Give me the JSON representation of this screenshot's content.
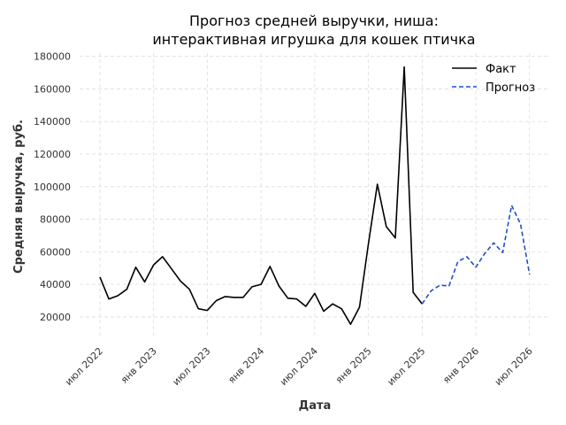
{
  "chart_data": {
    "type": "line",
    "title_line1": "Прогноз средней выручки, ниша:",
    "title_line2": "интерактивная игрушка для кошек птичка",
    "xlabel": "Дата",
    "ylabel": "Средняя выручка, руб.",
    "ylim": [
      8000,
      182000
    ],
    "y_ticks": [
      20000,
      40000,
      60000,
      80000,
      100000,
      120000,
      140000,
      160000,
      180000
    ],
    "y_tick_labels": [
      "20000",
      "40000",
      "60000",
      "80000",
      "100000",
      "120000",
      "140000",
      "160000",
      "180000"
    ],
    "x_ticks": [
      {
        "date": "2022-07",
        "label": "июл 2022"
      },
      {
        "date": "2023-01",
        "label": "янв 2023"
      },
      {
        "date": "2023-07",
        "label": "июл 2023"
      },
      {
        "date": "2024-01",
        "label": "янв 2024"
      },
      {
        "date": "2024-07",
        "label": "июл 2024"
      },
      {
        "date": "2025-01",
        "label": "янв 2025"
      },
      {
        "date": "2025-07",
        "label": "июл 2025"
      },
      {
        "date": "2026-01",
        "label": "янв 2026"
      },
      {
        "date": "2026-07",
        "label": "июл 2026"
      }
    ],
    "grid": true,
    "legend_position": "top-right",
    "series": [
      {
        "name": "Факт",
        "color": "#000000",
        "style": "solid",
        "points": [
          [
            "2022-07",
            44500
          ],
          [
            "2022-08",
            31000
          ],
          [
            "2022-09",
            33000
          ],
          [
            "2022-10",
            37000
          ],
          [
            "2022-11",
            50500
          ],
          [
            "2022-12",
            41500
          ],
          [
            "2023-01",
            52000
          ],
          [
            "2023-02",
            57000
          ],
          [
            "2023-03",
            49500
          ],
          [
            "2023-04",
            42000
          ],
          [
            "2023-05",
            37000
          ],
          [
            "2023-06",
            25000
          ],
          [
            "2023-07",
            24000
          ],
          [
            "2023-08",
            30000
          ],
          [
            "2023-09",
            32500
          ],
          [
            "2023-10",
            32000
          ],
          [
            "2023-11",
            32000
          ],
          [
            "2023-12",
            38500
          ],
          [
            "2024-01",
            40000
          ],
          [
            "2024-02",
            51000
          ],
          [
            "2024-03",
            39000
          ],
          [
            "2024-04",
            31500
          ],
          [
            "2024-05",
            31000
          ],
          [
            "2024-06",
            26500
          ],
          [
            "2024-07",
            34500
          ],
          [
            "2024-08",
            23500
          ],
          [
            "2024-09",
            28000
          ],
          [
            "2024-10",
            25000
          ],
          [
            "2024-11",
            15500
          ],
          [
            "2024-12",
            26000
          ],
          [
            "2025-01",
            65000
          ],
          [
            "2025-02",
            101500
          ],
          [
            "2025-03",
            75500
          ],
          [
            "2025-04",
            68500
          ],
          [
            "2025-05",
            173500
          ],
          [
            "2025-06",
            35000
          ],
          [
            "2025-07",
            28000
          ]
        ]
      },
      {
        "name": "Прогноз",
        "color": "#1f4fc7",
        "style": "dashed",
        "points": [
          [
            "2025-07",
            28000
          ],
          [
            "2025-08",
            36000
          ],
          [
            "2025-09",
            39500
          ],
          [
            "2025-10",
            39000
          ],
          [
            "2025-11",
            54000
          ],
          [
            "2025-12",
            57000
          ],
          [
            "2026-01",
            50500
          ],
          [
            "2026-02",
            59000
          ],
          [
            "2026-03",
            65500
          ],
          [
            "2026-04",
            59500
          ],
          [
            "2026-05",
            88500
          ],
          [
            "2026-06",
            77000
          ],
          [
            "2026-07",
            46000
          ]
        ]
      }
    ]
  }
}
